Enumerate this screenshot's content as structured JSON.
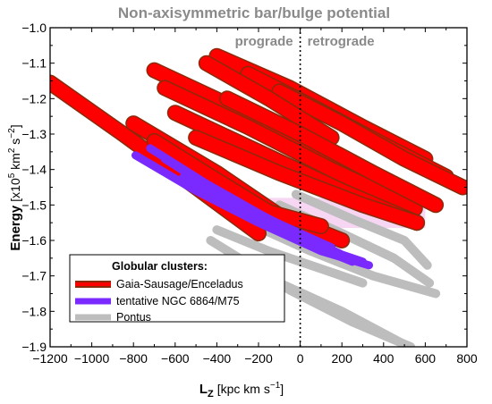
{
  "chart_data": {
    "type": "scatter",
    "title": "Non-axisymmetric bar/bulge potential",
    "xlabel_main": "L",
    "xlabel_sub": "Z",
    "xlabel_unit_pre": "[kpc km s",
    "xlabel_unit_sup": "−1",
    "xlabel_unit_post": "]",
    "ylabel_main": "Energy",
    "ylabel_unit_pre": "[x10",
    "ylabel_unit_sup1": "5",
    "ylabel_unit_mid": " km",
    "ylabel_unit_sup2": "2",
    "ylabel_unit_mid2": " s",
    "ylabel_unit_sup3": "−2",
    "ylabel_unit_post": "]",
    "xlim": [
      -1200,
      800
    ],
    "ylim": [
      -1.9,
      -1.0
    ],
    "xticks": [
      -1200,
      -1000,
      -800,
      -600,
      -400,
      -200,
      0,
      200,
      400,
      600,
      800
    ],
    "xtick_labels": [
      "−1200",
      "−1000",
      "−800",
      "−600",
      "−400",
      "−200",
      "0",
      "200",
      "400",
      "600",
      "800"
    ],
    "yticks": [
      -1.0,
      -1.1,
      -1.2,
      -1.3,
      -1.4,
      -1.5,
      -1.6,
      -1.7,
      -1.8,
      -1.9
    ],
    "ytick_labels": [
      "−1.0",
      "−1.1",
      "−1.2",
      "−1.3",
      "−1.4",
      "−1.5",
      "−1.6",
      "−1.7",
      "−1.8",
      "−1.9"
    ],
    "regions": [
      {
        "label": "prograde",
        "side": "left-of-zero"
      },
      {
        "label": "retrograde",
        "side": "right-of-zero"
      }
    ],
    "divider_x": 0,
    "legend": {
      "title": "Globular clusters:",
      "placement": "bottom-left",
      "entries": [
        {
          "label": "Gaia-Sausage/Enceladus",
          "color": "#ff0000",
          "edge": "#8b2a0a"
        },
        {
          "label": "tentative NGC 6864/M75",
          "color": "#7a2aff"
        },
        {
          "label": "Pontus",
          "color": "#bdbdbd"
        }
      ]
    },
    "series": [
      {
        "name": "Gaia-Sausage/Enceladus",
        "color": "#ff0000",
        "edge": "#8b2a0a",
        "tracks": [
          {
            "x": [
              -1200,
              -850,
              -500,
              -200
            ],
            "y": [
              -1.155,
              -1.3,
              -1.45,
              -1.58
            ]
          },
          {
            "x": [
              -800,
              -400,
              -100,
              200
            ],
            "y": [
              -1.27,
              -1.41,
              -1.53,
              -1.6
            ]
          },
          {
            "x": [
              -700,
              -300,
              100,
              450
            ],
            "y": [
              -1.12,
              -1.23,
              -1.36,
              -1.46
            ]
          },
          {
            "x": [
              -650,
              -250,
              150,
              550
            ],
            "y": [
              -1.17,
              -1.28,
              -1.4,
              -1.51
            ]
          },
          {
            "x": [
              -600,
              -200,
              200,
              560
            ],
            "y": [
              -1.24,
              -1.35,
              -1.46,
              -1.55
            ]
          },
          {
            "x": [
              -500,
              -100,
              300,
              560
            ],
            "y": [
              -1.31,
              -1.41,
              -1.5,
              -1.55
            ]
          },
          {
            "x": [
              -400,
              -50,
              300,
              600
            ],
            "y": [
              -1.08,
              -1.17,
              -1.28,
              -1.37
            ]
          },
          {
            "x": [
              -250,
              50,
              400,
              700
            ],
            "y": [
              -1.13,
              -1.22,
              -1.33,
              -1.42
            ]
          },
          {
            "x": [
              -100,
              200,
              500,
              780
            ],
            "y": [
              -1.18,
              -1.27,
              -1.37,
              -1.45
            ]
          },
          {
            "x": [
              -700,
              -400,
              -150,
              100
            ],
            "y": [
              -1.32,
              -1.43,
              -1.52,
              -1.56
            ]
          },
          {
            "x": [
              -450,
              -150,
              150
            ],
            "y": [
              -1.1,
              -1.2,
              -1.31
            ]
          },
          {
            "x": [
              -350,
              0,
              350,
              650
            ],
            "y": [
              -1.2,
              -1.3,
              -1.41,
              -1.5
            ]
          }
        ]
      },
      {
        "name": "tentative NGC 6864/M75",
        "color": "#7a2aff",
        "tracks": [
          {
            "x": [
              -790,
              -500,
              -200,
              100,
              330
            ],
            "y": [
              -1.36,
              -1.46,
              -1.55,
              -1.63,
              -1.67
            ]
          },
          {
            "x": [
              -720,
              -450,
              -150,
              150
            ],
            "y": [
              -1.34,
              -1.44,
              -1.54,
              -1.62
            ]
          },
          {
            "x": [
              -650,
              -380,
              -80,
              200,
              300
            ],
            "y": [
              -1.37,
              -1.47,
              -1.56,
              -1.64,
              -1.66
            ]
          },
          {
            "x": [
              -560,
              -300,
              0,
              250
            ],
            "y": [
              -1.42,
              -1.51,
              -1.6,
              -1.66
            ]
          }
        ]
      },
      {
        "name": "Pontus",
        "color": "#bdbdbd",
        "tracks": [
          {
            "x": [
              -430,
              -100,
              200,
              520
            ],
            "y": [
              -1.6,
              -1.72,
              -1.8,
              -1.9
            ]
          },
          {
            "x": [
              -350,
              -50,
              250,
              530
            ],
            "y": [
              -1.63,
              -1.74,
              -1.83,
              -1.9
            ]
          },
          {
            "x": [
              -250,
              50,
              350,
              650
            ],
            "y": [
              -1.55,
              -1.63,
              -1.7,
              -1.75
            ]
          },
          {
            "x": [
              -100,
              200,
              450,
              620
            ],
            "y": [
              -1.5,
              -1.58,
              -1.65,
              -1.72
            ]
          },
          {
            "x": [
              -20,
              250,
              500,
              610
            ],
            "y": [
              -1.47,
              -1.54,
              -1.6,
              -1.67
            ]
          },
          {
            "x": [
              -400,
              -150,
              100,
              300
            ],
            "y": [
              -1.57,
              -1.63,
              -1.68,
              -1.72
            ]
          }
        ]
      }
    ]
  }
}
